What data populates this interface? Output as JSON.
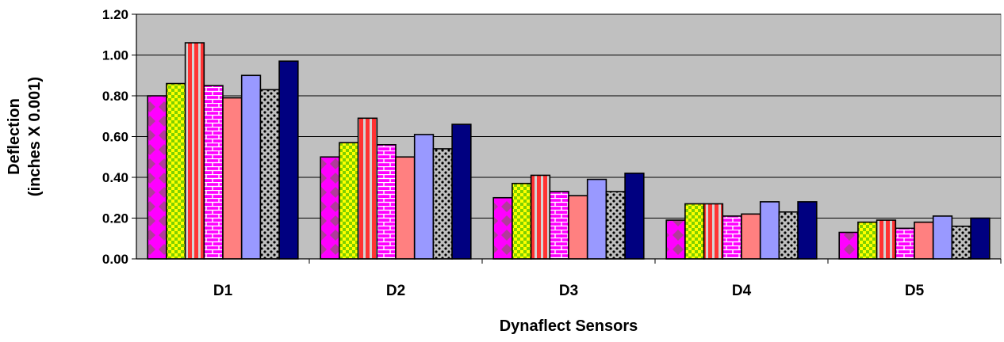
{
  "chart_data": {
    "type": "bar",
    "title": "",
    "xlabel": "Dynaflect Sensors",
    "ylabel_lines": [
      "Deflection",
      "(inches X 0.001)"
    ],
    "ylim": [
      0,
      1.2
    ],
    "yticks": [
      "0.00",
      "0.20",
      "0.40",
      "0.60",
      "0.80",
      "1.00",
      "1.20"
    ],
    "grid": true,
    "legend": "none",
    "categories": [
      "D1",
      "D2",
      "D3",
      "D4",
      "D5"
    ],
    "series": [
      {
        "values": [
          0.8,
          0.5,
          0.3,
          0.19,
          0.13
        ],
        "color": "#ff00ff",
        "pattern": "diamonds"
      },
      {
        "values": [
          0.86,
          0.57,
          0.37,
          0.27,
          0.18
        ],
        "color": "#ffff00",
        "pattern": "checker"
      },
      {
        "values": [
          1.06,
          0.69,
          0.41,
          0.27,
          0.19
        ],
        "color": "#ff3333",
        "pattern": "vstripes"
      },
      {
        "values": [
          0.85,
          0.56,
          0.33,
          0.21,
          0.15
        ],
        "color": "#ff00ff",
        "pattern": "bricks"
      },
      {
        "values": [
          0.79,
          0.5,
          0.31,
          0.22,
          0.18
        ],
        "color": "#ff8080",
        "pattern": "solid"
      },
      {
        "values": [
          0.9,
          0.61,
          0.39,
          0.28,
          0.21
        ],
        "color": "#9999ff",
        "pattern": "solid"
      },
      {
        "values": [
          0.83,
          0.54,
          0.33,
          0.23,
          0.16
        ],
        "color": "#c0c0c0",
        "pattern": "dots"
      },
      {
        "values": [
          0.97,
          0.66,
          0.42,
          0.28,
          0.2
        ],
        "color": "#000080",
        "pattern": "solid"
      }
    ],
    "plot_background": "#c0c0c0"
  }
}
